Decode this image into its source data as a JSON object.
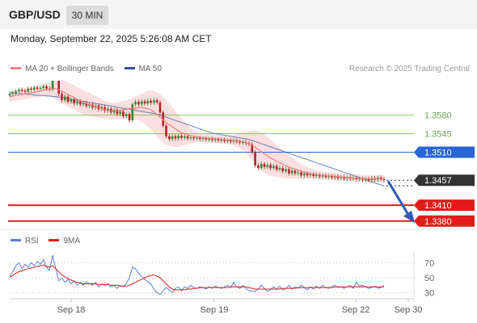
{
  "header": {
    "pair": "GBP/USD",
    "timeframe": "30 MIN"
  },
  "datetime": "Monday, September 22, 2025 5:26:08 AM CET",
  "credit": "Research © 2025 Trading Central",
  "colors": {
    "ma20": "#f08080",
    "band": "#fcd9dc",
    "ma50": "#2c5499",
    "up": "#2e8b2e",
    "down": "#b22222",
    "support": "#e31b1b",
    "resistance": "#8cc85a",
    "pivot": "#2a64d6",
    "price": "#333333",
    "rsi": "#5b7fd6",
    "rsi_ma": "#e31b1b",
    "arrow": "#2c5ab4"
  },
  "chart_data": [
    {
      "type": "line",
      "title": "",
      "legend": [
        {
          "name": "MA 20 + Bollinger Bands",
          "color": "#f08080"
        },
        {
          "name": "MA 50",
          "color": "#2c5499"
        }
      ],
      "legend_position": "top-left",
      "x_ticks": [
        "Sep 18",
        "Sep 19",
        "Sep 22",
        "Sep 30"
      ],
      "ylim": [
        1.334,
        1.366
      ],
      "levels": [
        {
          "value": 1.358,
          "label": "1.3580",
          "kind": "resistance"
        },
        {
          "value": 1.3545,
          "label": "1.3545",
          "kind": "resistance"
        },
        {
          "value": 1.351,
          "label": "1.3510",
          "kind": "pivot"
        },
        {
          "value": 1.3457,
          "label": "1.3457",
          "kind": "last-price"
        },
        {
          "value": 1.341,
          "label": "1.3410",
          "kind": "support"
        },
        {
          "value": 1.338,
          "label": "1.3380",
          "kind": "support"
        }
      ],
      "close": [
        1.362,
        1.3622,
        1.3625,
        1.3628,
        1.3626,
        1.3624,
        1.363,
        1.3628,
        1.3632,
        1.363,
        1.3631,
        1.3634,
        1.363,
        1.3628,
        1.3665,
        1.366,
        1.362,
        1.3608,
        1.3615,
        1.3605,
        1.361,
        1.3602,
        1.3606,
        1.36,
        1.3603,
        1.3597,
        1.36,
        1.3594,
        1.3598,
        1.3591,
        1.3595,
        1.3588,
        1.3592,
        1.3585,
        1.359,
        1.3582,
        1.3587,
        1.3578,
        1.3582,
        1.357,
        1.36,
        1.3605,
        1.36,
        1.3606,
        1.3602,
        1.3607,
        1.3603,
        1.3608,
        1.3604,
        1.3585,
        1.356,
        1.354,
        1.3535,
        1.354,
        1.3536,
        1.3541,
        1.3537,
        1.354,
        1.3536,
        1.3538,
        1.3536,
        1.3537,
        1.3535,
        1.3536,
        1.3534,
        1.3535,
        1.3533,
        1.3534,
        1.3532,
        1.3533,
        1.3531,
        1.3532,
        1.353,
        1.3532,
        1.353,
        1.3528,
        1.3529,
        1.3527,
        1.3525,
        1.351,
        1.3485,
        1.348,
        1.3488,
        1.3482,
        1.3486,
        1.348,
        1.3484,
        1.3477,
        1.348,
        1.3474,
        1.3478,
        1.347,
        1.3475,
        1.347,
        1.3472,
        1.3466,
        1.347,
        1.3466,
        1.3468,
        1.3465,
        1.3467,
        1.3464,
        1.3466,
        1.3463,
        1.3465,
        1.3462,
        1.3464,
        1.3461,
        1.3463,
        1.346,
        1.3462,
        1.346,
        1.3461,
        1.3459,
        1.346,
        1.3458,
        1.346,
        1.3457,
        1.3461,
        1.3458,
        1.3462,
        1.3459,
        1.3457
      ],
      "ma20": [
        1.3615,
        1.3616,
        1.3617,
        1.3618,
        1.3619,
        1.362,
        1.3621,
        1.3622,
        1.3623,
        1.3624,
        1.3625,
        1.3627,
        1.3628,
        1.3629,
        1.363,
        1.363,
        1.3628,
        1.3625,
        1.3622,
        1.3619,
        1.3616,
        1.3613,
        1.361,
        1.3607,
        1.3604,
        1.3602,
        1.36,
        1.3598,
        1.3596,
        1.3594,
        1.3592,
        1.359,
        1.3589,
        1.3588,
        1.3588,
        1.3588,
        1.3589,
        1.359,
        1.3591,
        1.3592,
        1.3592,
        1.3593,
        1.3594,
        1.3594,
        1.3593,
        1.3592,
        1.359,
        1.3586,
        1.3581,
        1.3576,
        1.3571,
        1.3566,
        1.3562,
        1.3558,
        1.3554,
        1.355,
        1.3547,
        1.3545,
        1.3543,
        1.3541,
        1.354,
        1.3539,
        1.3538,
        1.3537,
        1.3537,
        1.3536,
        1.3536,
        1.3535,
        1.3535,
        1.3534,
        1.3534,
        1.3533,
        1.3533,
        1.3532,
        1.3532,
        1.3531,
        1.353,
        1.3528,
        1.3526,
        1.3523,
        1.3519,
        1.3515,
        1.3511,
        1.3507,
        1.3503,
        1.3499,
        1.3496,
        1.3493,
        1.349,
        1.3487,
        1.3484,
        1.3482,
        1.348,
        1.3478,
        1.3476,
        1.3474,
        1.3472,
        1.3471,
        1.347,
        1.3469,
        1.3468,
        1.3467,
        1.3466,
        1.3466,
        1.3465,
        1.3465,
        1.3464,
        1.3464,
        1.3463,
        1.3463,
        1.3462,
        1.3462,
        1.3461,
        1.3461,
        1.3461,
        1.346,
        1.346,
        1.346,
        1.346,
        1.346,
        1.346,
        1.346,
        1.3459
      ],
      "band_width": [
        0.001,
        0.001,
        0.001,
        0.001,
        0.001,
        0.001,
        0.001,
        0.001,
        0.001,
        0.001,
        0.0011,
        0.0011,
        0.0012,
        0.0013,
        0.0016,
        0.002,
        0.0022,
        0.0023,
        0.0023,
        0.0023,
        0.0023,
        0.0023,
        0.0023,
        0.0023,
        0.0023,
        0.0022,
        0.0022,
        0.0021,
        0.002,
        0.0019,
        0.0018,
        0.0017,
        0.0016,
        0.0015,
        0.0015,
        0.0015,
        0.0016,
        0.0017,
        0.0017,
        0.0018,
        0.002,
        0.0022,
        0.0024,
        0.0026,
        0.003,
        0.0034,
        0.0037,
        0.004,
        0.0042,
        0.0043,
        0.0043,
        0.0042,
        0.004,
        0.0037,
        0.0034,
        0.003,
        0.0026,
        0.0022,
        0.0018,
        0.0015,
        0.0012,
        0.001,
        0.0009,
        0.0008,
        0.0008,
        0.0008,
        0.0008,
        0.0008,
        0.0008,
        0.0008,
        0.0008,
        0.0008,
        0.0009,
        0.001,
        0.0012,
        0.0014,
        0.0017,
        0.002,
        0.0024,
        0.0028,
        0.0032,
        0.0035,
        0.0036,
        0.0036,
        0.0035,
        0.0034,
        0.0032,
        0.003,
        0.0028,
        0.0026,
        0.0024,
        0.0022,
        0.002,
        0.0018,
        0.0016,
        0.0014,
        0.0012,
        0.0011,
        0.001,
        0.0009,
        0.0008,
        0.0008,
        0.0007,
        0.0007,
        0.0007,
        0.0007,
        0.0007,
        0.0007,
        0.0007,
        0.0007,
        0.0007,
        0.0007,
        0.0007,
        0.0007,
        0.0007,
        0.0007,
        0.0007,
        0.0007,
        0.0007,
        0.0007,
        0.0007,
        0.0007,
        0.0007
      ],
      "ma50": [
        1.3622,
        1.3622,
        1.3621,
        1.3621,
        1.362,
        1.362,
        1.3619,
        1.3619,
        1.3618,
        1.3618,
        1.3617,
        1.3617,
        1.3616,
        1.3616,
        1.3615,
        1.3615,
        1.3614,
        1.3613,
        1.3612,
        1.3611,
        1.361,
        1.3609,
        1.3608,
        1.3607,
        1.3606,
        1.3605,
        1.3604,
        1.3603,
        1.3602,
        1.3601,
        1.36,
        1.3599,
        1.3598,
        1.3597,
        1.3596,
        1.3595,
        1.3594,
        1.3593,
        1.3592,
        1.3591,
        1.359,
        1.3589,
        1.3588,
        1.3587,
        1.3586,
        1.3585,
        1.3584,
        1.3583,
        1.3582,
        1.358,
        1.3578,
        1.3576,
        1.3574,
        1.3572,
        1.357,
        1.3568,
        1.3566,
        1.3564,
        1.3562,
        1.356,
        1.3558,
        1.3556,
        1.3554,
        1.3552,
        1.355,
        1.3548,
        1.3546,
        1.3545,
        1.3544,
        1.3543,
        1.3542,
        1.3541,
        1.354,
        1.3539,
        1.3538,
        1.3537,
        1.3536,
        1.3535,
        1.3534,
        1.3532,
        1.353,
        1.3528,
        1.3526,
        1.3524,
        1.3522,
        1.352,
        1.3518,
        1.3516,
        1.3514,
        1.3512,
        1.351,
        1.3508,
        1.3506,
        1.3504,
        1.3502,
        1.35,
        1.3498,
        1.3496,
        1.3494,
        1.3492,
        1.349,
        1.3488,
        1.3486,
        1.3484,
        1.3482,
        1.348,
        1.3478,
        1.3476,
        1.3474,
        1.3472,
        1.347,
        1.3468,
        1.3466,
        1.3464,
        1.3462,
        1.346,
        1.3458,
        1.3456,
        1.3454,
        1.3452,
        1.345,
        1.3448,
        1.3446
      ],
      "forecast": {
        "from": 1.3457,
        "to": 1.338
      }
    },
    {
      "type": "line",
      "title": "",
      "legend": [
        {
          "name": "RSI",
          "color": "#5b7fd6"
        },
        {
          "name": "9MA",
          "color": "#e31b1b"
        }
      ],
      "ylim": [
        20,
        80
      ],
      "y_ticks": [
        70,
        50,
        30
      ],
      "series": [
        {
          "name": "RSI",
          "values": [
            52,
            58,
            66,
            70,
            62,
            68,
            64,
            70,
            66,
            72,
            68,
            74,
            64,
            60,
            80,
            62,
            46,
            50,
            44,
            48,
            42,
            46,
            40,
            44,
            40,
            45,
            42,
            40,
            44,
            38,
            42,
            40,
            42,
            38,
            40,
            36,
            40,
            38,
            42,
            50,
            64,
            62,
            56,
            52,
            48,
            45,
            42,
            35,
            30,
            28,
            33,
            37,
            34,
            30,
            36,
            38,
            33,
            38,
            36,
            40,
            37,
            36,
            38,
            37,
            35,
            38,
            36,
            39,
            37,
            36,
            38,
            40,
            37,
            44,
            38,
            36,
            40,
            36,
            33,
            32,
            32,
            35,
            40,
            36,
            32,
            34,
            38,
            35,
            39,
            34,
            36,
            40,
            35,
            38,
            36,
            40,
            37,
            34,
            38,
            35,
            39,
            36,
            40,
            37,
            36,
            38,
            40,
            37,
            38,
            36,
            38,
            40,
            36,
            44,
            39,
            40,
            38,
            36,
            37,
            39,
            36,
            37,
            40
          ]
        },
        {
          "name": "9MA",
          "values": [
            51,
            53,
            56,
            58,
            59,
            61,
            62,
            63,
            64,
            65,
            66,
            67,
            65,
            64,
            66,
            62,
            58,
            54,
            51,
            49,
            47,
            45,
            44,
            43,
            42,
            42,
            42,
            42,
            42,
            41,
            41,
            41,
            41,
            40,
            40,
            40,
            39,
            39,
            39,
            40,
            42,
            44,
            46,
            48,
            50,
            52,
            53,
            54,
            52,
            50,
            46,
            42,
            38,
            35,
            34,
            34,
            34,
            34,
            35,
            35,
            36,
            36,
            37,
            37,
            37,
            37,
            37,
            37,
            37,
            37,
            37,
            37,
            38,
            38,
            38,
            38,
            38,
            38,
            37,
            36,
            35,
            35,
            35,
            35,
            35,
            35,
            35,
            35,
            35,
            36,
            36,
            36,
            36,
            36,
            37,
            37,
            37,
            37,
            37,
            37,
            37,
            37,
            37,
            37,
            37,
            37,
            38,
            38,
            38,
            38,
            38,
            38,
            38,
            38,
            38,
            38,
            38,
            38,
            38,
            38,
            38,
            38,
            38
          ]
        }
      ]
    }
  ]
}
